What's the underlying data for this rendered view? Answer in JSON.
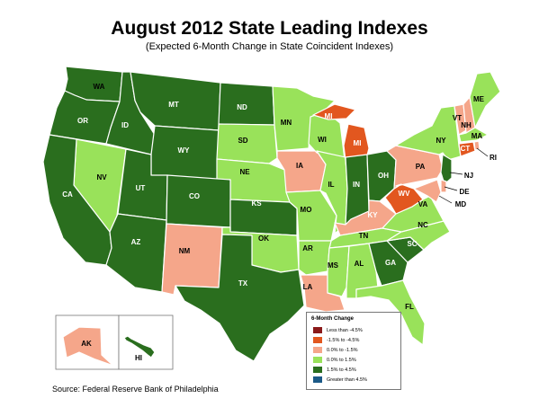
{
  "title": "August 2012 State Leading Indexes",
  "subtitle": "(Expected 6-Month Change in State Coincident Indexes)",
  "source": "Source: Federal Reserve Bank of Philadelphia",
  "legend": {
    "title": "6-Month Change",
    "items": [
      {
        "label": "Less than -4.5%",
        "color": "#8b1a1a"
      },
      {
        "label": "-1.5% to -4.5%",
        "color": "#e2571f"
      },
      {
        "label": "0.0% to -1.5%",
        "color": "#f5a68a"
      },
      {
        "label": "0.0% to  1.5%",
        "color": "#99e25a"
      },
      {
        "label": "1.5% to  4.5%",
        "color": "#2a6e1e"
      },
      {
        "label": "Greater than 4.5%",
        "color": "#1c5a87"
      }
    ]
  },
  "states": {
    "WA": "1.5% to  4.5%",
    "OR": "1.5% to  4.5%",
    "ID": "1.5% to  4.5%",
    "MT": "1.5% to  4.5%",
    "WY": "1.5% to  4.5%",
    "ND": "1.5% to  4.5%",
    "UT": "1.5% to  4.5%",
    "CO": "1.5% to  4.5%",
    "CA": "1.5% to  4.5%",
    "AZ": "1.5% to  4.5%",
    "KS": "1.5% to  4.5%",
    "TX": "1.5% to  4.5%",
    "IN": "1.5% to  4.5%",
    "OH": "1.5% to  4.5%",
    "SC": "1.5% to  4.5%",
    "GA": "1.5% to  4.5%",
    "NJ": "1.5% to  4.5%",
    "HI": "1.5% to  4.5%",
    "NV": "0.0% to  1.5%",
    "SD": "0.0% to  1.5%",
    "NE": "0.0% to  1.5%",
    "MN": "0.0% to  1.5%",
    "WI": "0.0% to  1.5%",
    "IL": "0.0% to  1.5%",
    "MO": "0.0% to  1.5%",
    "OK": "0.0% to  1.5%",
    "AR": "0.0% to  1.5%",
    "TN": "0.0% to  1.5%",
    "MS": "0.0% to  1.5%",
    "AL": "0.0% to  1.5%",
    "FL": "0.0% to  1.5%",
    "NC": "0.0% to  1.5%",
    "VA": "0.0% to  1.5%",
    "NY": "0.0% to  1.5%",
    "ME": "0.0% to  1.5%",
    "MA": "0.0% to  1.5%",
    "IA": "0.0% to -1.5%",
    "NM": "0.0% to -1.5%",
    "KY": "0.0% to -1.5%",
    "PA": "0.0% to -1.5%",
    "LA": "0.0% to -1.5%",
    "VT": "0.0% to -1.5%",
    "NH": "0.0% to -1.5%",
    "DE": "0.0% to -1.5%",
    "MD": "0.0% to -1.5%",
    "RI": "0.0% to -1.5%",
    "AK": "0.0% to -1.5%",
    "MI": "-1.5% to -4.5%",
    "WV": "-1.5% to -4.5%",
    "CT": "-1.5% to -4.5%"
  }
}
